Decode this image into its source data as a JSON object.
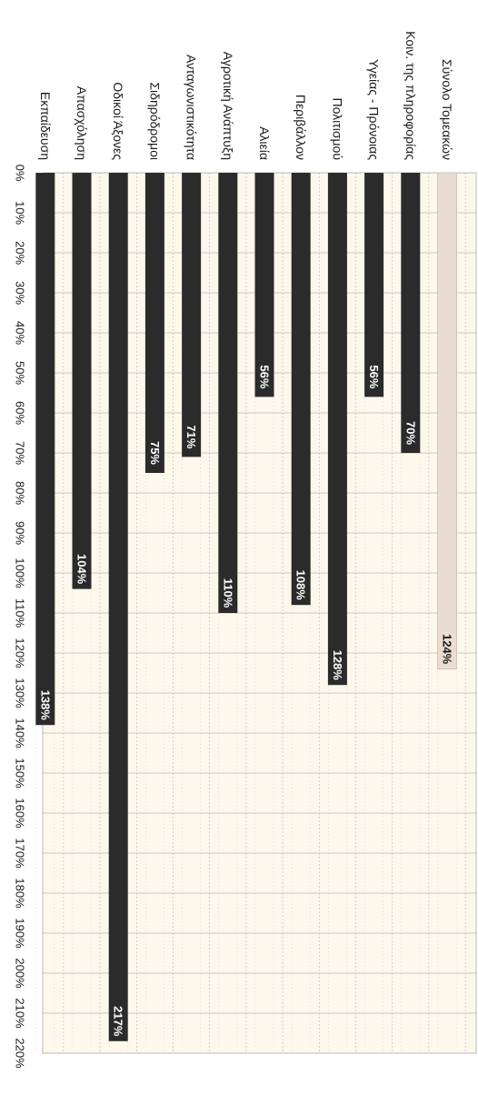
{
  "chart_data": {
    "type": "bar",
    "orientation": "horizontal",
    "categories": [
      "Σύνολο Τομεακών",
      "Κοιν. της πληροφορίας",
      "Υγείας - Πρόνοιας",
      "Πολιτισμού",
      "Περιβάλλον",
      "Αλιεία",
      "Αγροτική Ανάπτυξη",
      "Ανταγωνιστικότητα",
      "Σιδηρόδρομοι",
      "Οδικοί Άξονες",
      "Απασχόληση",
      "Εκπαίδευση"
    ],
    "values": [
      124,
      70,
      56,
      128,
      108,
      56,
      110,
      71,
      75,
      217,
      104,
      138
    ],
    "data_labels": [
      "124%",
      "70%",
      "56%",
      "128%",
      "108%",
      "56%",
      "110%",
      "71%",
      "75%",
      "217%",
      "104%",
      "138%"
    ],
    "tick_labels": [
      "0%",
      "10%",
      "20%",
      "30%",
      "40%",
      "50%",
      "60%",
      "70%",
      "80%",
      "90%",
      "100%",
      "110%",
      "120%",
      "130%",
      "140%",
      "150%",
      "160%",
      "170%",
      "180%",
      "190%",
      "200%",
      "210%",
      "220%"
    ],
    "xlim": [
      0,
      220
    ],
    "grid": true,
    "highlight_index": 0,
    "colors": {
      "bar": "#2b2b2b",
      "highlight_bar": "#e8ddd0",
      "plot_background": "#fdf8ec",
      "grid": "#b8b8b8",
      "dark_label": "#ffffff",
      "light_label": "#1a1a1a"
    }
  }
}
